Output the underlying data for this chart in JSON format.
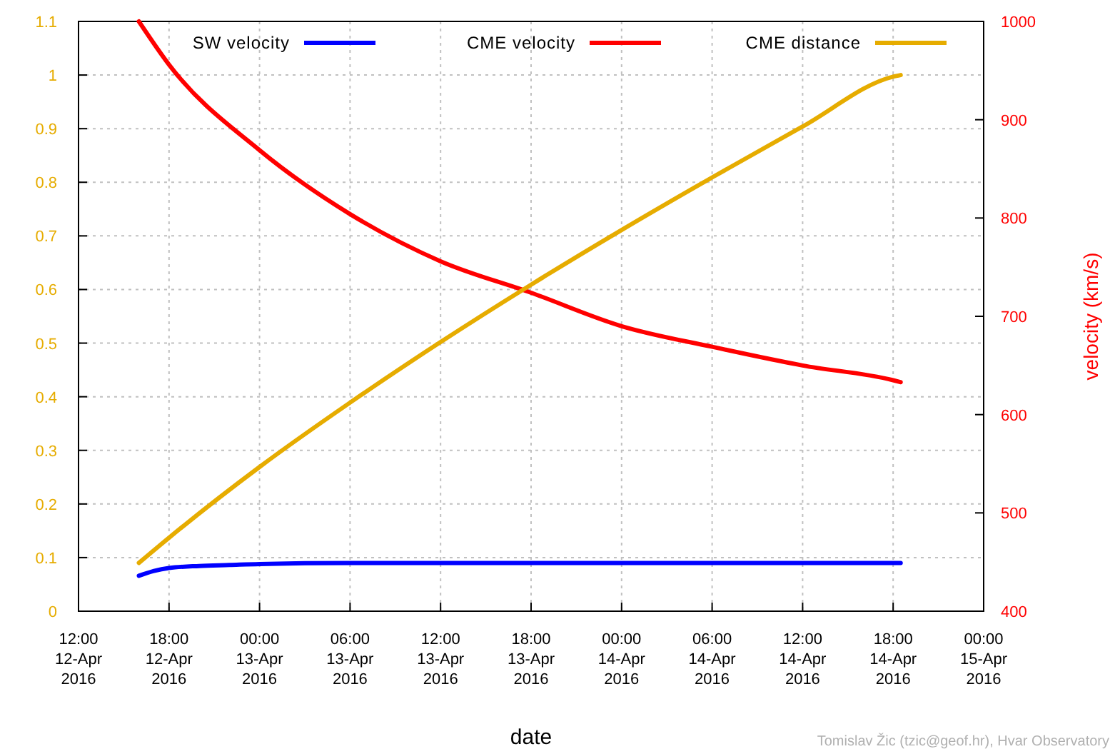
{
  "chart_data": {
    "type": "line",
    "xlabel": "date",
    "y2label": "velocity (km/s)",
    "x": [
      "2016-04-12T16:00",
      "2016-04-12T18:00",
      "2016-04-13T00:00",
      "2016-04-13T06:00",
      "2016-04-13T12:00",
      "2016-04-13T18:00",
      "2016-04-14T00:00",
      "2016-04-14T06:00",
      "2016-04-14T12:00",
      "2016-04-14T18:00",
      "2016-04-14T18:30"
    ],
    "series": [
      {
        "name": "SW velocity",
        "color": "#0000ff",
        "axis": "y2",
        "x": [
          "2016-04-12T16:00",
          "2016-04-12T17:00",
          "2016-04-12T18:00",
          "2016-04-12T20:00",
          "2016-04-12T22:00",
          "2016-04-13T00:00",
          "2016-04-13T06:00",
          "2016-04-13T12:00",
          "2016-04-14T00:00",
          "2016-04-14T12:00",
          "2016-04-14T18:30"
        ],
        "values": [
          436,
          441,
          444,
          446,
          447,
          448,
          449,
          449,
          449,
          449,
          449
        ]
      },
      {
        "name": "CME velocity",
        "color": "#ff0000",
        "axis": "y2",
        "values": [
          1000,
          956,
          869,
          804,
          756,
          724,
          690,
          669,
          650,
          635,
          633
        ]
      },
      {
        "name": "CME distance",
        "color": "#e6ac00",
        "values": [
          0.09,
          0.137,
          0.269,
          0.389,
          0.502,
          0.609,
          0.711,
          0.809,
          0.904,
          0.997,
          1.0
        ]
      }
    ],
    "xlim": [
      "2016-04-12T12:00",
      "2016-04-15T00:00"
    ],
    "xticks": [
      {
        "value": "2016-04-12T12:00",
        "label": "12:00\n12-Apr\n2016"
      },
      {
        "value": "2016-04-12T18:00",
        "label": "18:00\n12-Apr\n2016"
      },
      {
        "value": "2016-04-13T00:00",
        "label": "00:00\n13-Apr\n2016"
      },
      {
        "value": "2016-04-13T06:00",
        "label": "06:00\n13-Apr\n2016"
      },
      {
        "value": "2016-04-13T12:00",
        "label": "12:00\n13-Apr\n2016"
      },
      {
        "value": "2016-04-13T18:00",
        "label": "18:00\n13-Apr\n2016"
      },
      {
        "value": "2016-04-14T00:00",
        "label": "00:00\n14-Apr\n2016"
      },
      {
        "value": "2016-04-14T06:00",
        "label": "06:00\n14-Apr\n2016"
      },
      {
        "value": "2016-04-14T12:00",
        "label": "12:00\n14-Apr\n2016"
      },
      {
        "value": "2016-04-14T18:00",
        "label": "18:00\n14-Apr\n2016"
      },
      {
        "value": "2016-04-15T00:00",
        "label": "00:00\n15-Apr\n2016"
      }
    ],
    "ylim": [
      0,
      1.1
    ],
    "yticks": [
      0,
      0.1,
      0.2,
      0.3,
      0.4,
      0.5,
      0.6,
      0.7,
      0.8,
      0.9,
      1,
      1.1
    ],
    "y2lim": [
      400,
      1000
    ],
    "y2ticks": [
      400,
      500,
      600,
      700,
      800,
      900,
      1000
    ],
    "grid": true,
    "legend": "top",
    "line_style": "solid",
    "marker": "none",
    "annotations": [
      "Tomislav Žic (tzic@geof.hr), Hvar Observatory"
    ]
  }
}
